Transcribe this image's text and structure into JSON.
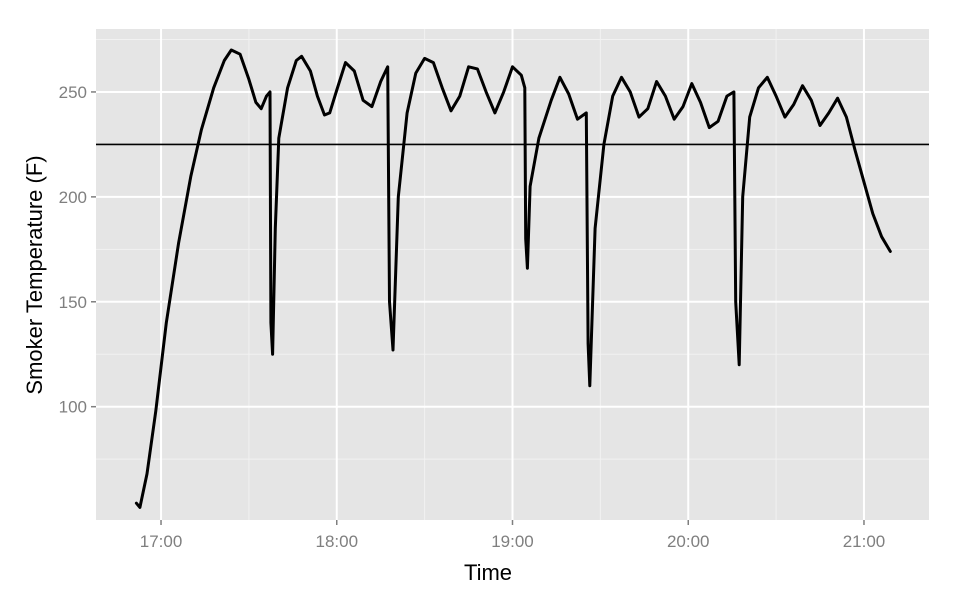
{
  "chart_data": {
    "type": "line",
    "title": "",
    "xlabel": "Time",
    "ylabel": "Smoker Temperature (F)",
    "x_unit": "hours (clock time, 16.0 = 16:00)",
    "xlim": [
      16.63,
      21.37
    ],
    "ylim": [
      46,
      280
    ],
    "x_ticks": [
      {
        "value": 17,
        "label": "17:00"
      },
      {
        "value": 18,
        "label": "18:00"
      },
      {
        "value": 19,
        "label": "19:00"
      },
      {
        "value": 20,
        "label": "20:00"
      },
      {
        "value": 21,
        "label": "21:00"
      }
    ],
    "y_ticks": [
      {
        "value": 100,
        "label": "100"
      },
      {
        "value": 150,
        "label": "150"
      },
      {
        "value": 200,
        "label": "200"
      },
      {
        "value": 250,
        "label": "250"
      }
    ],
    "grid": true,
    "reference_line": {
      "y": 225,
      "color": "#000000"
    },
    "colors": {
      "panel": "#e5e5e5",
      "grid_major": "#ffffff",
      "grid_minor": "#f2f2f2",
      "line": "#000000",
      "tick_label": "#7f7f7f"
    },
    "series": [
      {
        "values": [
          [
            16.86,
            54
          ],
          [
            16.88,
            52
          ],
          [
            16.92,
            68
          ],
          [
            16.97,
            98
          ],
          [
            17.03,
            140
          ],
          [
            17.1,
            178
          ],
          [
            17.17,
            210
          ],
          [
            17.23,
            232
          ],
          [
            17.3,
            252
          ],
          [
            17.36,
            265
          ],
          [
            17.4,
            270
          ],
          [
            17.45,
            268
          ],
          [
            17.5,
            256
          ],
          [
            17.54,
            245
          ],
          [
            17.57,
            242
          ],
          [
            17.6,
            248
          ],
          [
            17.62,
            250
          ],
          [
            17.625,
            140
          ],
          [
            17.635,
            125
          ],
          [
            17.65,
            185
          ],
          [
            17.67,
            228
          ],
          [
            17.72,
            252
          ],
          [
            17.77,
            265
          ],
          [
            17.8,
            267
          ],
          [
            17.85,
            260
          ],
          [
            17.89,
            248
          ],
          [
            17.93,
            239
          ],
          [
            17.96,
            240
          ],
          [
            18.0,
            251
          ],
          [
            18.05,
            264
          ],
          [
            18.1,
            260
          ],
          [
            18.15,
            246
          ],
          [
            18.2,
            243
          ],
          [
            18.25,
            255
          ],
          [
            18.29,
            262
          ],
          [
            18.3,
            150
          ],
          [
            18.32,
            127
          ],
          [
            18.35,
            200
          ],
          [
            18.4,
            240
          ],
          [
            18.45,
            259
          ],
          [
            18.5,
            266
          ],
          [
            18.55,
            264
          ],
          [
            18.6,
            252
          ],
          [
            18.65,
            241
          ],
          [
            18.7,
            248
          ],
          [
            18.75,
            262
          ],
          [
            18.8,
            261
          ],
          [
            18.85,
            250
          ],
          [
            18.9,
            240
          ],
          [
            18.95,
            250
          ],
          [
            19.0,
            262
          ],
          [
            19.05,
            258
          ],
          [
            19.07,
            252
          ],
          [
            19.075,
            180
          ],
          [
            19.085,
            166
          ],
          [
            19.1,
            205
          ],
          [
            19.15,
            228
          ],
          [
            19.22,
            246
          ],
          [
            19.27,
            257
          ],
          [
            19.32,
            249
          ],
          [
            19.37,
            237
          ],
          [
            19.42,
            240
          ],
          [
            19.43,
            130
          ],
          [
            19.44,
            110
          ],
          [
            19.47,
            185
          ],
          [
            19.52,
            225
          ],
          [
            19.57,
            248
          ],
          [
            19.62,
            257
          ],
          [
            19.67,
            250
          ],
          [
            19.72,
            238
          ],
          [
            19.77,
            242
          ],
          [
            19.82,
            255
          ],
          [
            19.87,
            248
          ],
          [
            19.92,
            237
          ],
          [
            19.97,
            243
          ],
          [
            20.02,
            254
          ],
          [
            20.07,
            245
          ],
          [
            20.12,
            233
          ],
          [
            20.17,
            236
          ],
          [
            20.22,
            248
          ],
          [
            20.26,
            250
          ],
          [
            20.27,
            150
          ],
          [
            20.29,
            120
          ],
          [
            20.31,
            200
          ],
          [
            20.35,
            238
          ],
          [
            20.4,
            252
          ],
          [
            20.45,
            257
          ],
          [
            20.5,
            248
          ],
          [
            20.55,
            238
          ],
          [
            20.6,
            244
          ],
          [
            20.65,
            253
          ],
          [
            20.7,
            246
          ],
          [
            20.75,
            234
          ],
          [
            20.8,
            240
          ],
          [
            20.85,
            247
          ],
          [
            20.9,
            238
          ],
          [
            20.95,
            222
          ],
          [
            21.0,
            207
          ],
          [
            21.05,
            192
          ],
          [
            21.1,
            181
          ],
          [
            21.15,
            174
          ]
        ]
      }
    ]
  }
}
